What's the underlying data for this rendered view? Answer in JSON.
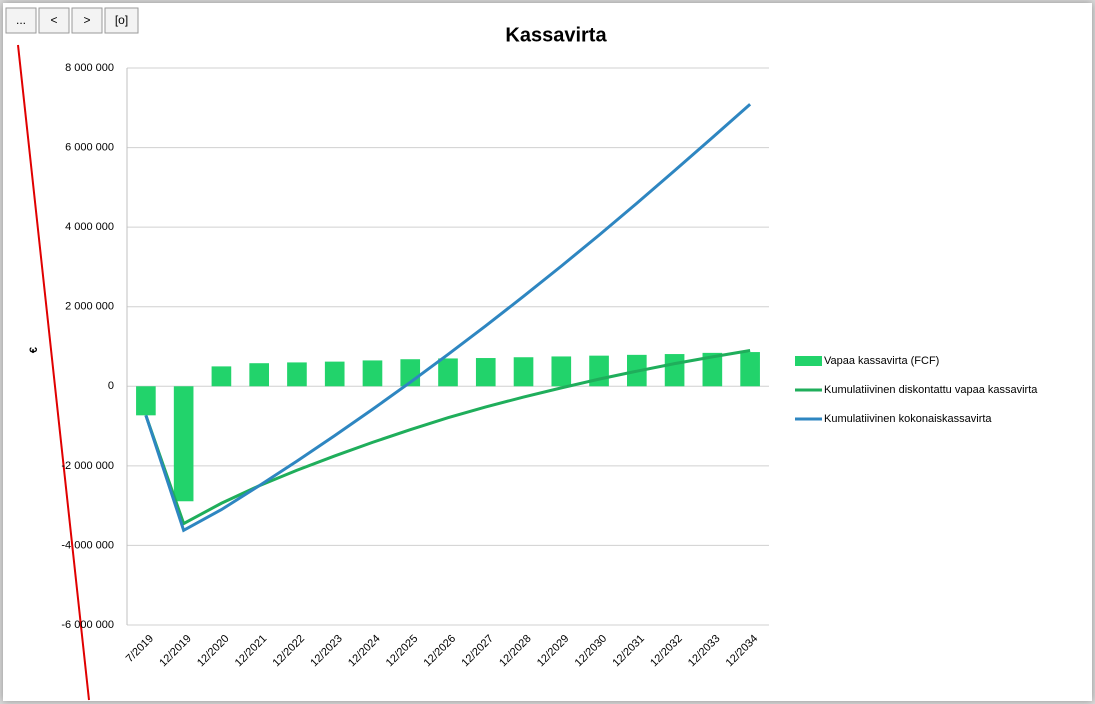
{
  "buttons": [
    "...",
    "<",
    ">",
    "[o]"
  ],
  "chart_data": {
    "type": "bar",
    "title": "Kassavirta",
    "y_label": "€",
    "categories": [
      "7/2019",
      "12/2019",
      "12/2020",
      "12/2021",
      "12/2022",
      "12/2023",
      "12/2024",
      "12/2025",
      "12/2026",
      "12/2027",
      "12/2028",
      "12/2029",
      "12/2030",
      "12/2031",
      "12/2032",
      "12/2033",
      "12/2034"
    ],
    "series": [
      {
        "name": "Vapaa kassavirta (FCF)",
        "type": "bar",
        "color": "#22d36b",
        "values": [
          -730000,
          -2890000,
          500000,
          580000,
          600000,
          620000,
          650000,
          680000,
          700000,
          710000,
          730000,
          750000,
          770000,
          790000,
          810000,
          840000,
          860000
        ]
      },
      {
        "name": "Kumulatiivinen diskontattu vapaa kassavirta",
        "type": "line",
        "color": "#1fae5b",
        "values": [
          -730000,
          -3450000,
          -2940000,
          -2500000,
          -2110000,
          -1750000,
          -1410000,
          -1090000,
          -790000,
          -520000,
          -270000,
          -40000,
          180000,
          380000,
          570000,
          740000,
          900000
        ]
      },
      {
        "name": "Kumulatiivinen kokonaiskassavirta",
        "type": "line",
        "color": "#2e86c1",
        "values": [
          -730000,
          -3620000,
          -3100000,
          -2500000,
          -1880000,
          -1240000,
          -580000,
          100000,
          800000,
          1520000,
          2260000,
          3020000,
          3800000,
          4600000,
          5420000,
          6250000,
          7090000
        ]
      }
    ],
    "ylim": [
      -6000000,
      8000000
    ],
    "yticks": [
      {
        "value": -6000000,
        "label": "-6 000 000"
      },
      {
        "value": -4000000,
        "label": "-4 000 000"
      },
      {
        "value": -2000000,
        "label": "-2 000 000"
      },
      0,
      {
        "value": 2000000,
        "label": "2 000 000"
      },
      {
        "value": 4000000,
        "label": "4 000 000"
      },
      {
        "value": 6000000,
        "label": "6 000 000"
      },
      {
        "value": 8000000,
        "label": "8 000 000"
      }
    ],
    "grid": true,
    "legend": "right"
  }
}
